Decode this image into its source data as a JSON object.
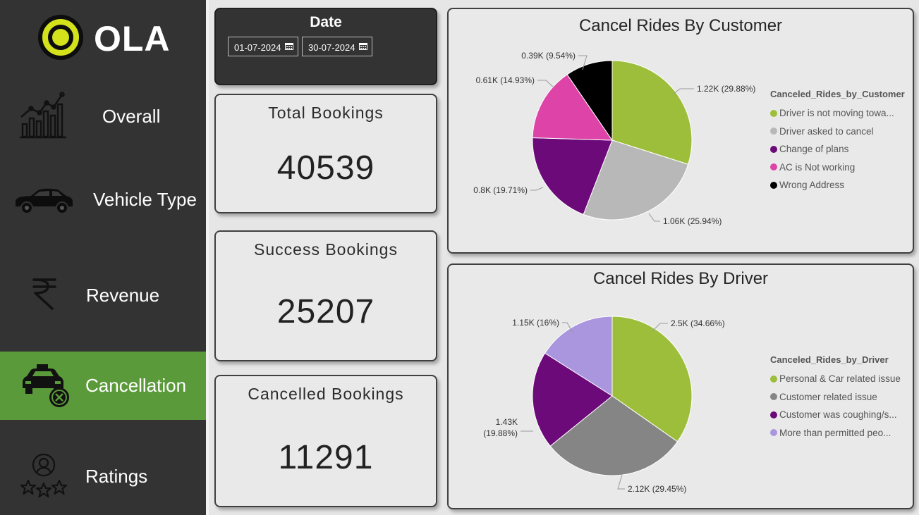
{
  "sidebar": {
    "logo_text": "OLA",
    "items": [
      {
        "label": "Overall",
        "icon": "line-chart-icon"
      },
      {
        "label": "Vehicle Type",
        "icon": "car-icon"
      },
      {
        "label": "Revenue",
        "icon": "rupee-icon"
      },
      {
        "label": "Cancellation",
        "icon": "taxi-cancel-icon",
        "active": true
      },
      {
        "label": "Ratings",
        "icon": "star-badge-icon"
      }
    ]
  },
  "date_filter": {
    "title": "Date",
    "start": "01-07-2024",
    "end": "30-07-2024"
  },
  "kpis": {
    "total": {
      "title": "Total Bookings",
      "value": "40539"
    },
    "success": {
      "title": "Success Bookings",
      "value": "25207"
    },
    "cancelled": {
      "title": "Cancelled Bookings",
      "value": "11291"
    }
  },
  "colors": {
    "green": "#9dbe3a",
    "light_gray": "#b8b8b8",
    "purple": "#6b0a78",
    "pink": "#de44a8",
    "black": "#000000",
    "dark_gray": "#858585",
    "lavender": "#aa96de",
    "active_nav": "#5b9a3a"
  },
  "chart_data": [
    {
      "type": "pie",
      "title": "Cancel Rides By Customer",
      "legend_title": "Canceled_Rides_by_Customer",
      "legend_position": "right",
      "slices": [
        {
          "legend": "Driver is not moving towa...",
          "value": 1.22,
          "label": "1.22K (29.88%)",
          "color": "#9dbe3a"
        },
        {
          "legend": "Driver asked to cancel",
          "value": 1.06,
          "label": "1.06K (25.94%)",
          "color": "#b8b8b8"
        },
        {
          "legend": "Change of plans",
          "value": 0.8,
          "label": "0.8K (19.71%)",
          "color": "#6b0a78"
        },
        {
          "legend": "AC is Not working",
          "value": 0.61,
          "label": "0.61K (14.93%)",
          "color": "#de44a8"
        },
        {
          "legend": "Wrong Address",
          "value": 0.39,
          "label": "0.39K (9.54%)",
          "color": "#000000"
        }
      ]
    },
    {
      "type": "pie",
      "title": "Cancel Rides By Driver",
      "legend_title": "Canceled_Rides_by_Driver",
      "legend_position": "right",
      "slices": [
        {
          "legend": "Personal & Car related issue",
          "value": 2.5,
          "label": "2.5K (34.66%)",
          "color": "#9dbe3a"
        },
        {
          "legend": "Customer related issue",
          "value": 2.12,
          "label": "2.12K (29.45%)",
          "color": "#858585"
        },
        {
          "legend": "Customer was coughing/s...",
          "value": 1.43,
          "label": "1.43K|(19.88%)",
          "color": "#6b0a78"
        },
        {
          "legend": "More than permitted peo...",
          "value": 1.15,
          "label": "1.15K (16%)",
          "color": "#aa96de"
        }
      ]
    }
  ]
}
